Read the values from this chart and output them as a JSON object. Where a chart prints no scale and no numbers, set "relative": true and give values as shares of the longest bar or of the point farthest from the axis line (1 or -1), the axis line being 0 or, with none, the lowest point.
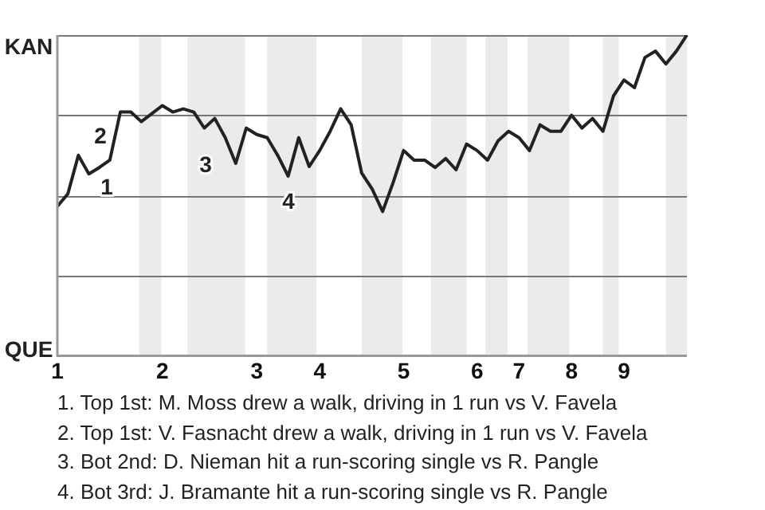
{
  "chart_data": {
    "type": "line",
    "relative": true,
    "legend": false,
    "grid": "y",
    "marker": "none",
    "line_style": "solid",
    "categories": [
      "1",
      null,
      null,
      null,
      null,
      null,
      null,
      null,
      null,
      null,
      "2",
      null,
      null,
      null,
      null,
      null,
      null,
      null,
      null,
      "3",
      null,
      null,
      null,
      null,
      null,
      "4",
      null,
      null,
      null,
      null,
      null,
      null,
      null,
      "5",
      null,
      null,
      null,
      null,
      null,
      null,
      "6",
      null,
      null,
      null,
      "7",
      null,
      null,
      null,
      null,
      "8",
      null,
      null,
      null,
      null,
      "9",
      null,
      null,
      null,
      null,
      null,
      null
    ],
    "series": [
      {
        "color": "#222222",
        "values": [
          0.466,
          0.505,
          0.625,
          0.567,
          0.587,
          0.61,
          0.76,
          0.76,
          0.73,
          0.755,
          0.78,
          0.76,
          0.77,
          0.76,
          0.71,
          0.74,
          0.68,
          0.6,
          0.71,
          0.69,
          0.68,
          0.625,
          0.56,
          0.68,
          0.59,
          0.64,
          0.7,
          0.77,
          0.72,
          0.57,
          0.52,
          0.45,
          0.54,
          0.64,
          0.61,
          0.61,
          0.587,
          0.615,
          0.58,
          0.66,
          0.64,
          0.61,
          0.67,
          0.7,
          0.68,
          0.64,
          0.72,
          0.7,
          0.7,
          0.75,
          0.71,
          0.74,
          0.7,
          0.81,
          0.86,
          0.836,
          0.93,
          0.95,
          0.91,
          0.95,
          1
        ]
      }
    ],
    "annotations": [
      "KAN",
      "QUE",
      "1",
      "2",
      "3",
      "4",
      "1. Top 1st: M. Moss drew a walk, driving in 1 run vs V. Favela",
      "2. Top 1st: V. Fasnacht drew a walk, driving in 1 run vs V. Favela",
      "3. Bot 2nd: D. Nieman hit a run-scoring single vs R. Pangle",
      "4. Bot 3rd: J. Bramante hit a run-scoring single vs R. Pangle"
    ]
  }
}
